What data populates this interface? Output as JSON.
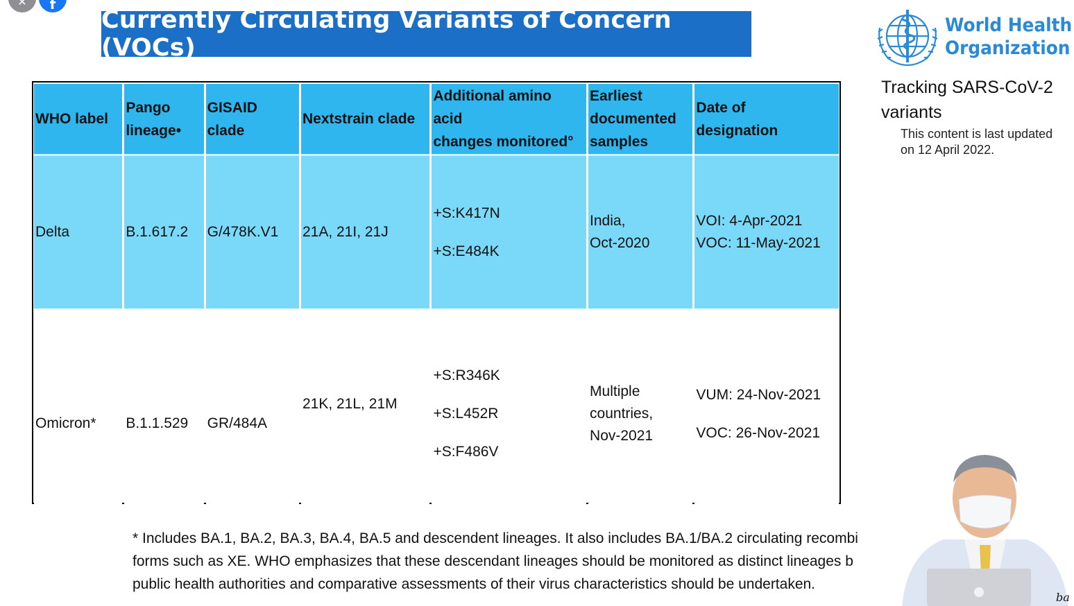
{
  "title": "Currently Circulating Variants of Concern (VOCs)",
  "who": {
    "name_line1": "World Health",
    "name_line2": "Organization",
    "tracking_line1": "Tracking SARS-CoV-2",
    "tracking_line2": "variants",
    "updated_line1": "This content is last updated",
    "updated_line2": "on 12 April 2022."
  },
  "table": {
    "headers": {
      "who_label": "WHO label",
      "pango_1": "Pango",
      "pango_2": "lineage•",
      "gisaid_1": "GISAID",
      "gisaid_2": "clade",
      "nextstrain": "Nextstrain clade",
      "amino_1": "Additional amino",
      "amino_2": "acid",
      "amino_3": "changes monitored°",
      "earliest_1": "Earliest",
      "earliest_2": "documented",
      "earliest_3": "samples",
      "date_1": "Date of",
      "date_2": "designation"
    },
    "rows": [
      {
        "who_label": "Delta",
        "pango": "B.1.617.2",
        "gisaid": "G/478K.V1",
        "nextstrain": "21A, 21I, 21J",
        "mutations": [
          "+S:K417N",
          "+S:E484K"
        ],
        "earliest": [
          "India,",
          "Oct-2020"
        ],
        "designation": [
          "VOI: 4-Apr-2021",
          "VOC: 11-May-2021"
        ]
      },
      {
        "who_label": "Omicron*",
        "pango": "B.1.1.529",
        "gisaid": "GR/484A",
        "nextstrain": "21K, 21L, 21M",
        "mutations": [
          "+S:R346K",
          "+S:L452R",
          "+S:F486V"
        ],
        "earliest": [
          "Multiple",
          "countries,",
          "Nov-2021"
        ],
        "designation": [
          "VUM: 24-Nov-2021",
          "VOC: 26-Nov-2021"
        ]
      }
    ]
  },
  "footnote": {
    "line1": "* Includes BA.1, BA.2, BA.3, BA.4, BA.5 and descendent lineages. It also includes BA.1/BA.2 circulating recombi",
    "line2": "forms such as XE. WHO emphasizes that these descendant lineages should be monitored as distinct lineages b",
    "line3": "public health authorities and comparative assessments of their virus characteristics should be undertaken."
  },
  "corner_mark": "ba",
  "icons": {
    "close": "close-icon",
    "facebook": "facebook-icon",
    "facebook_glyph": "f",
    "close_glyph": "✕"
  },
  "colors": {
    "title_bg": "#1b6fc7",
    "header_bg": "#2fb6ee",
    "delta_row_bg": "#7ad9f9",
    "who_blue": "#2a8ad6"
  }
}
